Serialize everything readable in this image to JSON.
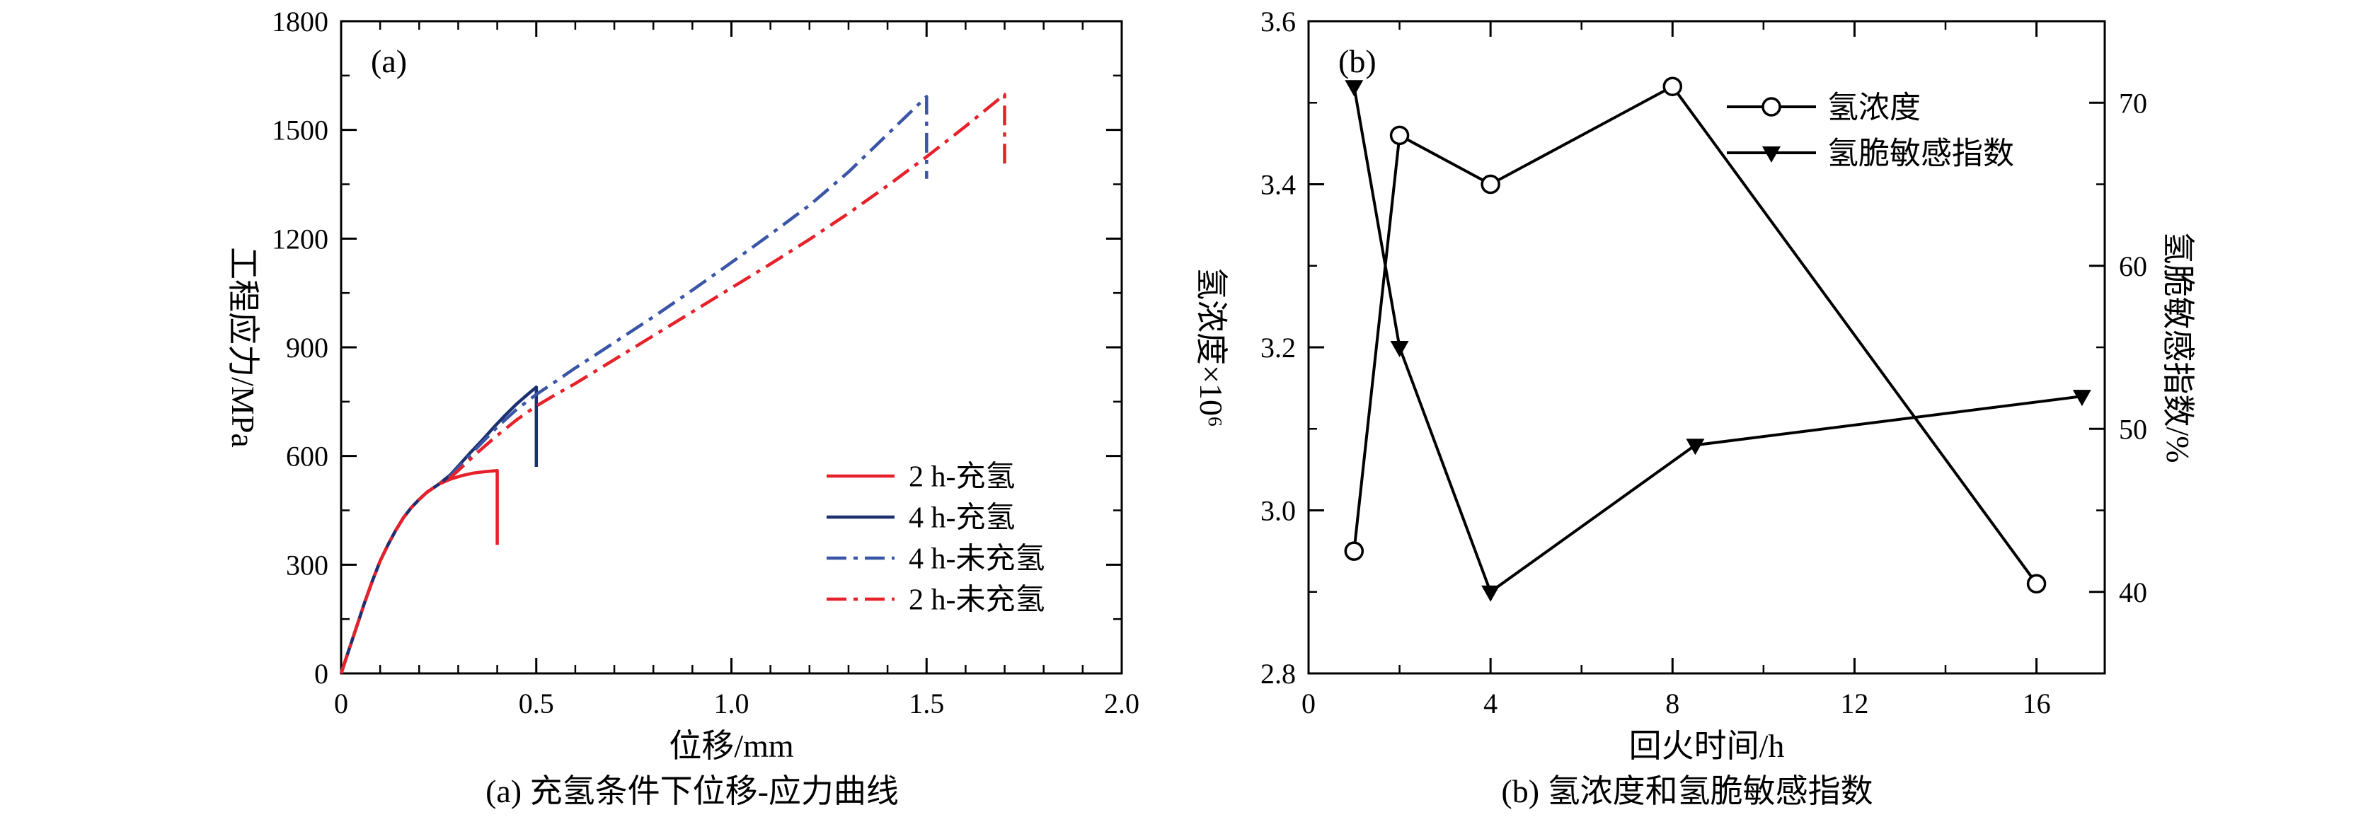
{
  "figure": {
    "background": "#ffffff",
    "axis_color": "#000000"
  },
  "captions": {
    "panel_a": "(a) 充氢条件下位移-应力曲线",
    "panel_b": "(b) 氢浓度和氢脆敏感指数"
  },
  "chart_data": [
    {
      "id": "panel_a",
      "type": "line",
      "panel_label": "(a)",
      "title": "",
      "xlabel": "位移/mm",
      "ylabel": "工程应力/MPa",
      "xlim": [
        0,
        2.0
      ],
      "ylim": [
        0,
        1800
      ],
      "xticks": [
        0,
        0.5,
        1.0,
        1.5,
        2.0
      ],
      "xtick_labels": [
        "0",
        "0.5",
        "1.0",
        "1.5",
        "2.0"
      ],
      "yticks": [
        0,
        300,
        600,
        900,
        1200,
        1500,
        1800
      ],
      "ytick_labels": [
        "0",
        "300",
        "600",
        "900",
        "1200",
        "1500",
        "1800"
      ],
      "x_minor_step": 0.1,
      "y_minor_step": 150,
      "grid": false,
      "frame": true,
      "tick_direction": "in",
      "legend_position": "right-center-inside",
      "series": [
        {
          "name": "2 h-充氢",
          "color": "#e62129",
          "line": "solid",
          "width": 4.5,
          "marker": "none",
          "points": [
            [
              0,
              0
            ],
            [
              0.02,
              65
            ],
            [
              0.04,
              130
            ],
            [
              0.06,
              195
            ],
            [
              0.08,
              255
            ],
            [
              0.1,
              310
            ],
            [
              0.12,
              355
            ],
            [
              0.14,
              395
            ],
            [
              0.16,
              430
            ],
            [
              0.18,
              458
            ],
            [
              0.2,
              480
            ],
            [
              0.22,
              500
            ],
            [
              0.25,
              522
            ],
            [
              0.28,
              536
            ],
            [
              0.31,
              546
            ],
            [
              0.34,
              553
            ],
            [
              0.37,
              557
            ],
            [
              0.4,
              560
            ],
            [
              0.4,
              355
            ]
          ]
        },
        {
          "name": "4 h-充氢",
          "color": "#1c2f6e",
          "line": "solid",
          "width": 4.5,
          "marker": "none",
          "points": [
            [
              0,
              0
            ],
            [
              0.02,
              65
            ],
            [
              0.04,
              130
            ],
            [
              0.06,
              195
            ],
            [
              0.08,
              255
            ],
            [
              0.1,
              310
            ],
            [
              0.12,
              355
            ],
            [
              0.14,
              395
            ],
            [
              0.16,
              430
            ],
            [
              0.18,
              458
            ],
            [
              0.2,
              480
            ],
            [
              0.22,
              500
            ],
            [
              0.25,
              522
            ],
            [
              0.28,
              548
            ],
            [
              0.3,
              572
            ],
            [
              0.33,
              608
            ],
            [
              0.36,
              642
            ],
            [
              0.39,
              678
            ],
            [
              0.42,
              712
            ],
            [
              0.45,
              744
            ],
            [
              0.48,
              772
            ],
            [
              0.5,
              790
            ],
            [
              0.5,
              570
            ]
          ]
        },
        {
          "name": "4 h-未充氢",
          "color": "#3a55a5",
          "line": "dashdot",
          "width": 4.5,
          "marker": "none",
          "points": [
            [
              0,
              0
            ],
            [
              0.02,
              65
            ],
            [
              0.04,
              130
            ],
            [
              0.06,
              195
            ],
            [
              0.08,
              255
            ],
            [
              0.1,
              310
            ],
            [
              0.12,
              355
            ],
            [
              0.14,
              395
            ],
            [
              0.16,
              430
            ],
            [
              0.18,
              458
            ],
            [
              0.2,
              480
            ],
            [
              0.22,
              500
            ],
            [
              0.25,
              522
            ],
            [
              0.28,
              545
            ],
            [
              0.3,
              568
            ],
            [
              0.35,
              625
            ],
            [
              0.4,
              680
            ],
            [
              0.45,
              729
            ],
            [
              0.5,
              770
            ],
            [
              0.55,
              806
            ],
            [
              0.6,
              843
            ],
            [
              0.7,
              913
            ],
            [
              0.8,
              984
            ],
            [
              0.9,
              1058
            ],
            [
              1.0,
              1134
            ],
            [
              1.1,
              1212
            ],
            [
              1.2,
              1292
            ],
            [
              1.3,
              1384
            ],
            [
              1.4,
              1488
            ],
            [
              1.45,
              1540
            ],
            [
              1.5,
              1592
            ],
            [
              1.5,
              1365
            ]
          ]
        },
        {
          "name": "2 h-未充氢",
          "color": "#e62129",
          "line": "dashdot",
          "width": 4.5,
          "marker": "none",
          "points": [
            [
              0,
              0
            ],
            [
              0.02,
              65
            ],
            [
              0.04,
              130
            ],
            [
              0.06,
              195
            ],
            [
              0.08,
              255
            ],
            [
              0.1,
              310
            ],
            [
              0.12,
              355
            ],
            [
              0.14,
              395
            ],
            [
              0.16,
              430
            ],
            [
              0.18,
              458
            ],
            [
              0.2,
              480
            ],
            [
              0.22,
              500
            ],
            [
              0.25,
              522
            ],
            [
              0.28,
              540
            ],
            [
              0.3,
              560
            ],
            [
              0.35,
              610
            ],
            [
              0.4,
              657
            ],
            [
              0.45,
              700
            ],
            [
              0.5,
              738
            ],
            [
              0.55,
              770
            ],
            [
              0.6,
              800
            ],
            [
              0.7,
              866
            ],
            [
              0.8,
              932
            ],
            [
              0.9,
              998
            ],
            [
              1.0,
              1064
            ],
            [
              1.1,
              1130
            ],
            [
              1.2,
              1198
            ],
            [
              1.3,
              1270
            ],
            [
              1.4,
              1346
            ],
            [
              1.5,
              1426
            ],
            [
              1.6,
              1510
            ],
            [
              1.7,
              1598
            ],
            [
              1.7,
              1390
            ]
          ]
        }
      ]
    },
    {
      "id": "panel_b",
      "type": "line",
      "panel_label": "(b)",
      "title": "",
      "xlabel": "回火时间/h",
      "ylabel_left": "氢浓度×10⁶",
      "ylabel_right": "氢脆敏感指数/%",
      "xlim": [
        0,
        17.5
      ],
      "ylim_left": [
        2.8,
        3.6
      ],
      "ylim_right": [
        35,
        75
      ],
      "xticks": [
        0,
        4,
        8,
        12,
        16
      ],
      "xtick_labels": [
        "0",
        "4",
        "8",
        "12",
        "16"
      ],
      "yticks_left": [
        2.8,
        3.0,
        3.2,
        3.4,
        3.6
      ],
      "ytick_labels_left": [
        "2.8",
        "3.0",
        "3.2",
        "3.4",
        "3.6"
      ],
      "yticks_right": [
        40,
        50,
        60,
        70
      ],
      "ytick_labels_right": [
        "40",
        "50",
        "60",
        "70"
      ],
      "x_minor_step": 2,
      "y_minor_step_left": 0.1,
      "y_minor_step_right": 5,
      "grid": false,
      "frame": true,
      "tick_direction": "in",
      "legend_position": "top-center-inside",
      "series": [
        {
          "name": "氢浓度",
          "axis": "left",
          "color": "#000000",
          "line": "solid",
          "width": 4,
          "marker": "circle-open",
          "points": [
            [
              1,
              2.95
            ],
            [
              2,
              3.46
            ],
            [
              4,
              3.4
            ],
            [
              8,
              3.52
            ],
            [
              16,
              2.91
            ]
          ]
        },
        {
          "name": "氢脆敏感指数",
          "axis": "right",
          "color": "#000000",
          "line": "solid",
          "width": 4,
          "marker": "triangle-down-filled",
          "points": [
            [
              1,
              71
            ],
            [
              2,
              55
            ],
            [
              4,
              40
            ],
            [
              8.5,
              49
            ],
            [
              17,
              52
            ]
          ]
        }
      ]
    }
  ]
}
